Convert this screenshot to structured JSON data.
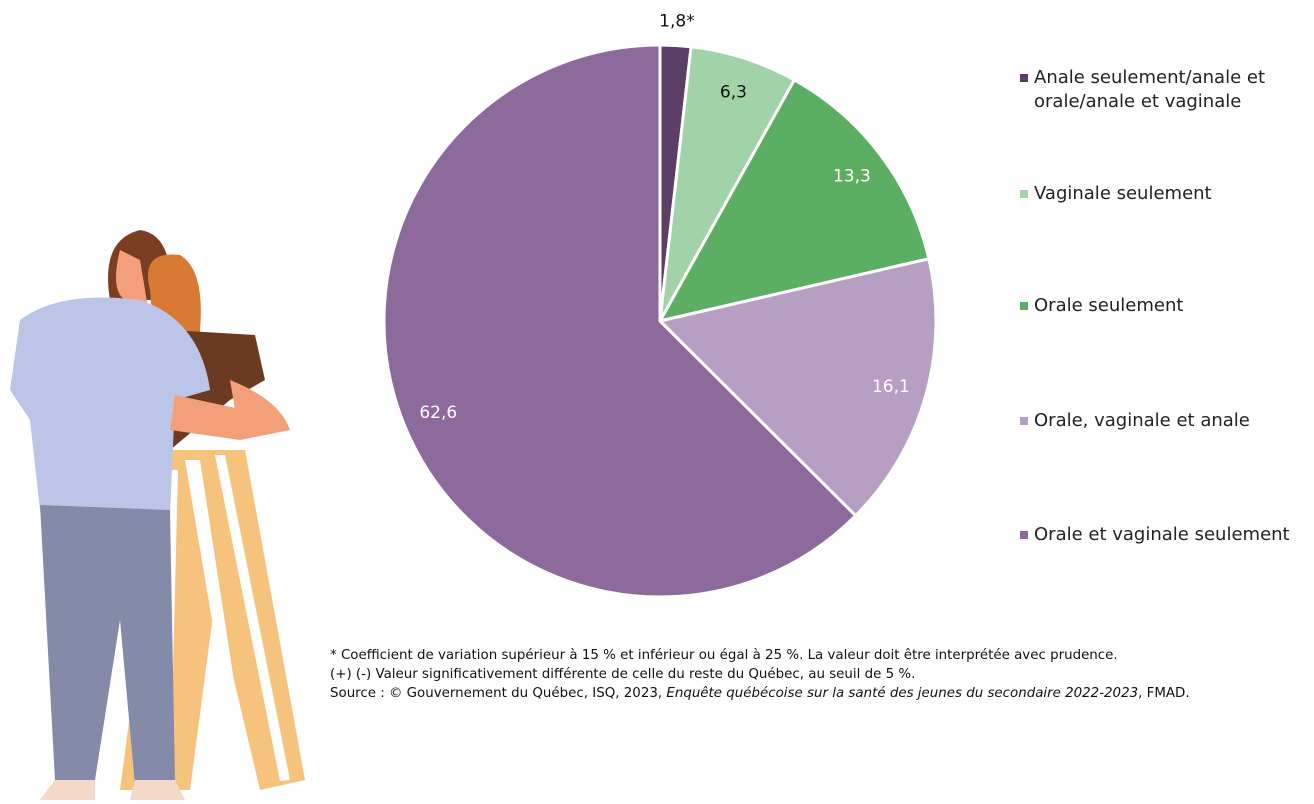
{
  "chart_data": {
    "type": "pie",
    "categories": [
      "Anale seulement/anale et orale/anale et vaginale",
      "Vaginale seulement",
      "Orale seulement",
      "Orale, vaginale et anale",
      "Orale et vaginale seulement"
    ],
    "values": [
      1.8,
      6.3,
      13.3,
      16.1,
      62.6
    ],
    "value_labels": [
      "1,8*",
      "6,3",
      "13,3",
      "16,1",
      "62,6"
    ],
    "colors": [
      "#5b3f66",
      "#a2d2a7",
      "#5bae62",
      "#b79fc4",
      "#8c6a9c"
    ],
    "legend": "right"
  },
  "footnotes": {
    "line1": "* Coefficient de variation supérieur à 15 % et inférieur ou égal à 25 %. La valeur doit être interprétée avec prudence.",
    "line2": "(+) (-) Valeur significativement différente de celle du reste du Québec, au seuil de 5 %.",
    "source_prefix": "Source : © Gouvernement du Québec, ISQ, 2023, ",
    "source_title": "Enquête québécoise sur la santé des jeunes du secondaire 2022-2023",
    "source_suffix": ", FMAD."
  }
}
